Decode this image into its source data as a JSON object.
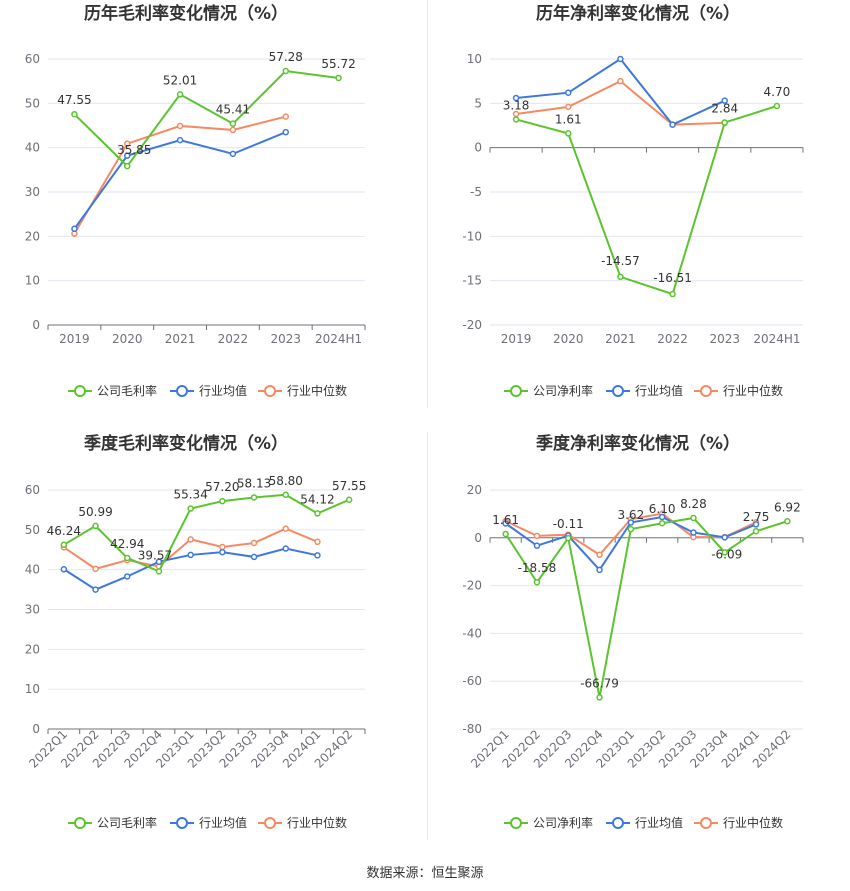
{
  "source": "数据来源：恒生聚源",
  "colors": {
    "company": "#5bc42e",
    "mean": "#3f78dc",
    "median": "#f58a62"
  },
  "chart_data": [
    {
      "id": "p1",
      "type": "line",
      "title": "历年毛利率变化情况（%）",
      "categories": [
        "2019",
        "2020",
        "2021",
        "2022",
        "2023",
        "2024H1"
      ],
      "ylim": [
        0,
        60
      ],
      "yticks": [
        0,
        10,
        20,
        30,
        40,
        50,
        60
      ],
      "grid": true,
      "legend_position": "bottom",
      "series": [
        {
          "name": "公司毛利率",
          "key": "company",
          "values": [
            47.55,
            35.85,
            52.01,
            45.41,
            57.28,
            55.72
          ],
          "labels": [
            "47.55",
            "35.85",
            "52.01",
            "45.41",
            "57.28",
            "55.72"
          ]
        },
        {
          "name": "行业均值",
          "key": "mean",
          "values": [
            21.7,
            38.2,
            41.7,
            38.6,
            43.5,
            null
          ]
        },
        {
          "name": "行业中位数",
          "key": "median",
          "values": [
            20.6,
            40.9,
            44.9,
            44.0,
            47.0,
            null
          ]
        }
      ]
    },
    {
      "id": "p2",
      "type": "line",
      "title": "历年净利率变化情况（%）",
      "categories": [
        "2019",
        "2020",
        "2021",
        "2022",
        "2023",
        "2024H1"
      ],
      "ylim": [
        -20,
        10
      ],
      "yticks": [
        -20,
        -15,
        -10,
        -5,
        0,
        5,
        10
      ],
      "grid": true,
      "legend_position": "bottom",
      "series": [
        {
          "name": "公司净利率",
          "key": "company",
          "values": [
            3.18,
            1.61,
            -14.57,
            -16.51,
            2.84,
            4.7
          ],
          "labels": [
            "3.18",
            "1.61",
            "-14.57",
            "-16.51",
            "2.84",
            "4.70"
          ]
        },
        {
          "name": "行业均值",
          "key": "mean",
          "values": [
            5.6,
            6.2,
            10.0,
            2.6,
            5.3,
            null
          ]
        },
        {
          "name": "行业中位数",
          "key": "median",
          "values": [
            3.8,
            4.6,
            7.5,
            2.6,
            2.8,
            null
          ]
        }
      ]
    },
    {
      "id": "p3",
      "type": "line",
      "title": "季度毛利率变化情况（%）",
      "categories": [
        "2022Q1",
        "2022Q2",
        "2022Q3",
        "2022Q4",
        "2023Q1",
        "2023Q2",
        "2023Q3",
        "2023Q4",
        "2024Q1",
        "2024Q2"
      ],
      "ylim": [
        0,
        60
      ],
      "yticks": [
        0,
        10,
        20,
        30,
        40,
        50,
        60
      ],
      "grid": true,
      "legend_position": "bottom",
      "series": [
        {
          "name": "公司毛利率",
          "key": "company",
          "values": [
            46.24,
            50.99,
            42.94,
            39.57,
            55.34,
            57.2,
            58.13,
            58.8,
            54.12,
            57.55
          ],
          "labels": [
            "46.24",
            "50.99",
            "42.94",
            "39.57",
            "55.34",
            "57.20",
            "58.13",
            "58.80",
            "54.12",
            "57.55"
          ]
        },
        {
          "name": "行业均值",
          "key": "mean",
          "values": [
            40.1,
            35.0,
            38.3,
            42.0,
            43.7,
            44.4,
            43.2,
            45.3,
            43.6,
            null
          ]
        },
        {
          "name": "行业中位数",
          "key": "median",
          "values": [
            45.6,
            40.2,
            42.4,
            40.8,
            47.6,
            45.7,
            46.7,
            50.3,
            47.0,
            null
          ]
        }
      ]
    },
    {
      "id": "p4",
      "type": "line",
      "title": "季度净利率变化情况（%）",
      "categories": [
        "2022Q1",
        "2022Q2",
        "2022Q3",
        "2022Q4",
        "2023Q1",
        "2023Q2",
        "2023Q3",
        "2023Q4",
        "2024Q1",
        "2024Q2"
      ],
      "ylim": [
        -80,
        20
      ],
      "yticks": [
        -80,
        -60,
        -40,
        -20,
        0,
        20
      ],
      "grid": true,
      "legend_position": "bottom",
      "series": [
        {
          "name": "公司净利率",
          "key": "company",
          "values": [
            1.61,
            -18.58,
            -0.11,
            -66.79,
            3.62,
            6.1,
            8.28,
            -6.09,
            2.75,
            6.92
          ],
          "labels": [
            "1.61",
            "-18.58",
            "-0.11",
            "-66.79",
            "3.62",
            "6.10",
            "8.28",
            "-6.09",
            "2.75",
            "6.92"
          ]
        },
        {
          "name": "行业均值",
          "key": "mean",
          "values": [
            6.0,
            -3.3,
            0.9,
            -13.4,
            6.4,
            8.7,
            2.2,
            0.2,
            5.6,
            null
          ]
        },
        {
          "name": "行业中位数",
          "key": "median",
          "values": [
            7.0,
            0.8,
            1.3,
            -7.1,
            7.8,
            10.1,
            0.3,
            0.3,
            6.5,
            null
          ]
        }
      ]
    }
  ]
}
